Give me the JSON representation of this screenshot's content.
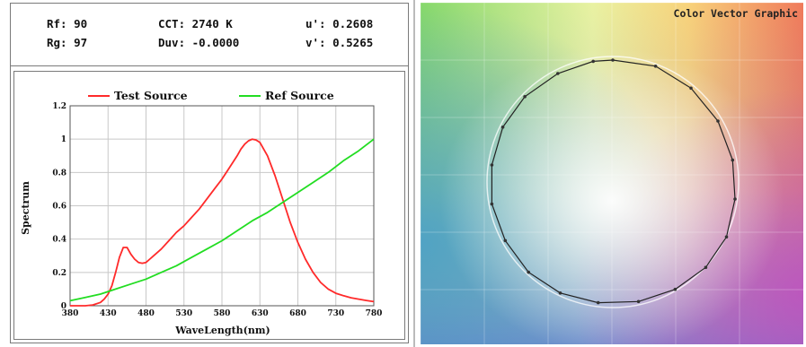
{
  "metrics": {
    "rf": "Rf: 90",
    "rg": "Rg: 97",
    "cct": "CCT: 2740 K",
    "duv": "Duv: -0.0000",
    "u_prime": "u': 0.2608",
    "v_prime": "v': 0.5265"
  },
  "chart_data": [
    {
      "type": "line",
      "xlabel": "WaveLength(nm)",
      "ylabel": "Spectrum",
      "xlim": [
        380,
        780
      ],
      "ylim": [
        0,
        1.2
      ],
      "x_ticks": [
        "380",
        "430",
        "480",
        "530",
        "580",
        "630",
        "680",
        "730",
        "780"
      ],
      "y_ticks": [
        "0",
        "0.2",
        "0.4",
        "0.6",
        "0.8",
        "1",
        "1.2"
      ],
      "grid": true,
      "legend": "top",
      "colors": {
        "test": "#ff2a2a",
        "ref": "#22dd22",
        "grid": "#c8c8c8"
      },
      "series": [
        {
          "name": "Test Source",
          "x": [
            380,
            400,
            410,
            420,
            425,
            430,
            435,
            440,
            445,
            450,
            455,
            460,
            465,
            470,
            475,
            480,
            485,
            490,
            500,
            510,
            520,
            530,
            540,
            550,
            560,
            570,
            580,
            590,
            600,
            605,
            610,
            615,
            620,
            625,
            630,
            640,
            650,
            660,
            670,
            680,
            690,
            700,
            710,
            720,
            730,
            740,
            750,
            760,
            770,
            780
          ],
          "y": [
            0.0,
            0.0,
            0.005,
            0.02,
            0.04,
            0.07,
            0.12,
            0.2,
            0.29,
            0.35,
            0.35,
            0.31,
            0.28,
            0.26,
            0.255,
            0.26,
            0.28,
            0.3,
            0.34,
            0.39,
            0.44,
            0.48,
            0.53,
            0.58,
            0.64,
            0.7,
            0.76,
            0.83,
            0.9,
            0.94,
            0.97,
            0.99,
            1.0,
            0.995,
            0.98,
            0.9,
            0.78,
            0.64,
            0.5,
            0.38,
            0.28,
            0.2,
            0.14,
            0.1,
            0.075,
            0.06,
            0.048,
            0.04,
            0.032,
            0.025
          ]
        },
        {
          "name": "Ref Source",
          "x": [
            380,
            400,
            420,
            440,
            460,
            480,
            500,
            520,
            540,
            560,
            580,
            600,
            620,
            640,
            660,
            680,
            700,
            720,
            740,
            760,
            780
          ],
          "y": [
            0.03,
            0.05,
            0.07,
            0.1,
            0.13,
            0.16,
            0.2,
            0.24,
            0.29,
            0.34,
            0.39,
            0.45,
            0.51,
            0.56,
            0.62,
            0.68,
            0.74,
            0.8,
            0.87,
            0.93,
            1.0
          ]
        }
      ]
    },
    {
      "type": "scatter",
      "title": "Color Vector Graphic",
      "series": [
        {
          "name": "",
          "x": [
            0.0,
            0.35,
            0.64,
            0.86,
            0.98,
            1.0,
            0.93,
            0.76,
            0.51,
            0.21,
            -0.12,
            -0.43,
            -0.69,
            -0.88,
            -0.99,
            -0.99,
            -0.9,
            -0.72,
            -0.45,
            -0.16
          ],
          "y": [
            1.0,
            0.95,
            0.77,
            0.5,
            0.18,
            -0.14,
            -0.45,
            -0.7,
            -0.88,
            -0.98,
            -0.99,
            -0.91,
            -0.74,
            -0.48,
            -0.18,
            0.14,
            0.45,
            0.7,
            0.89,
            0.99
          ]
        }
      ]
    }
  ]
}
